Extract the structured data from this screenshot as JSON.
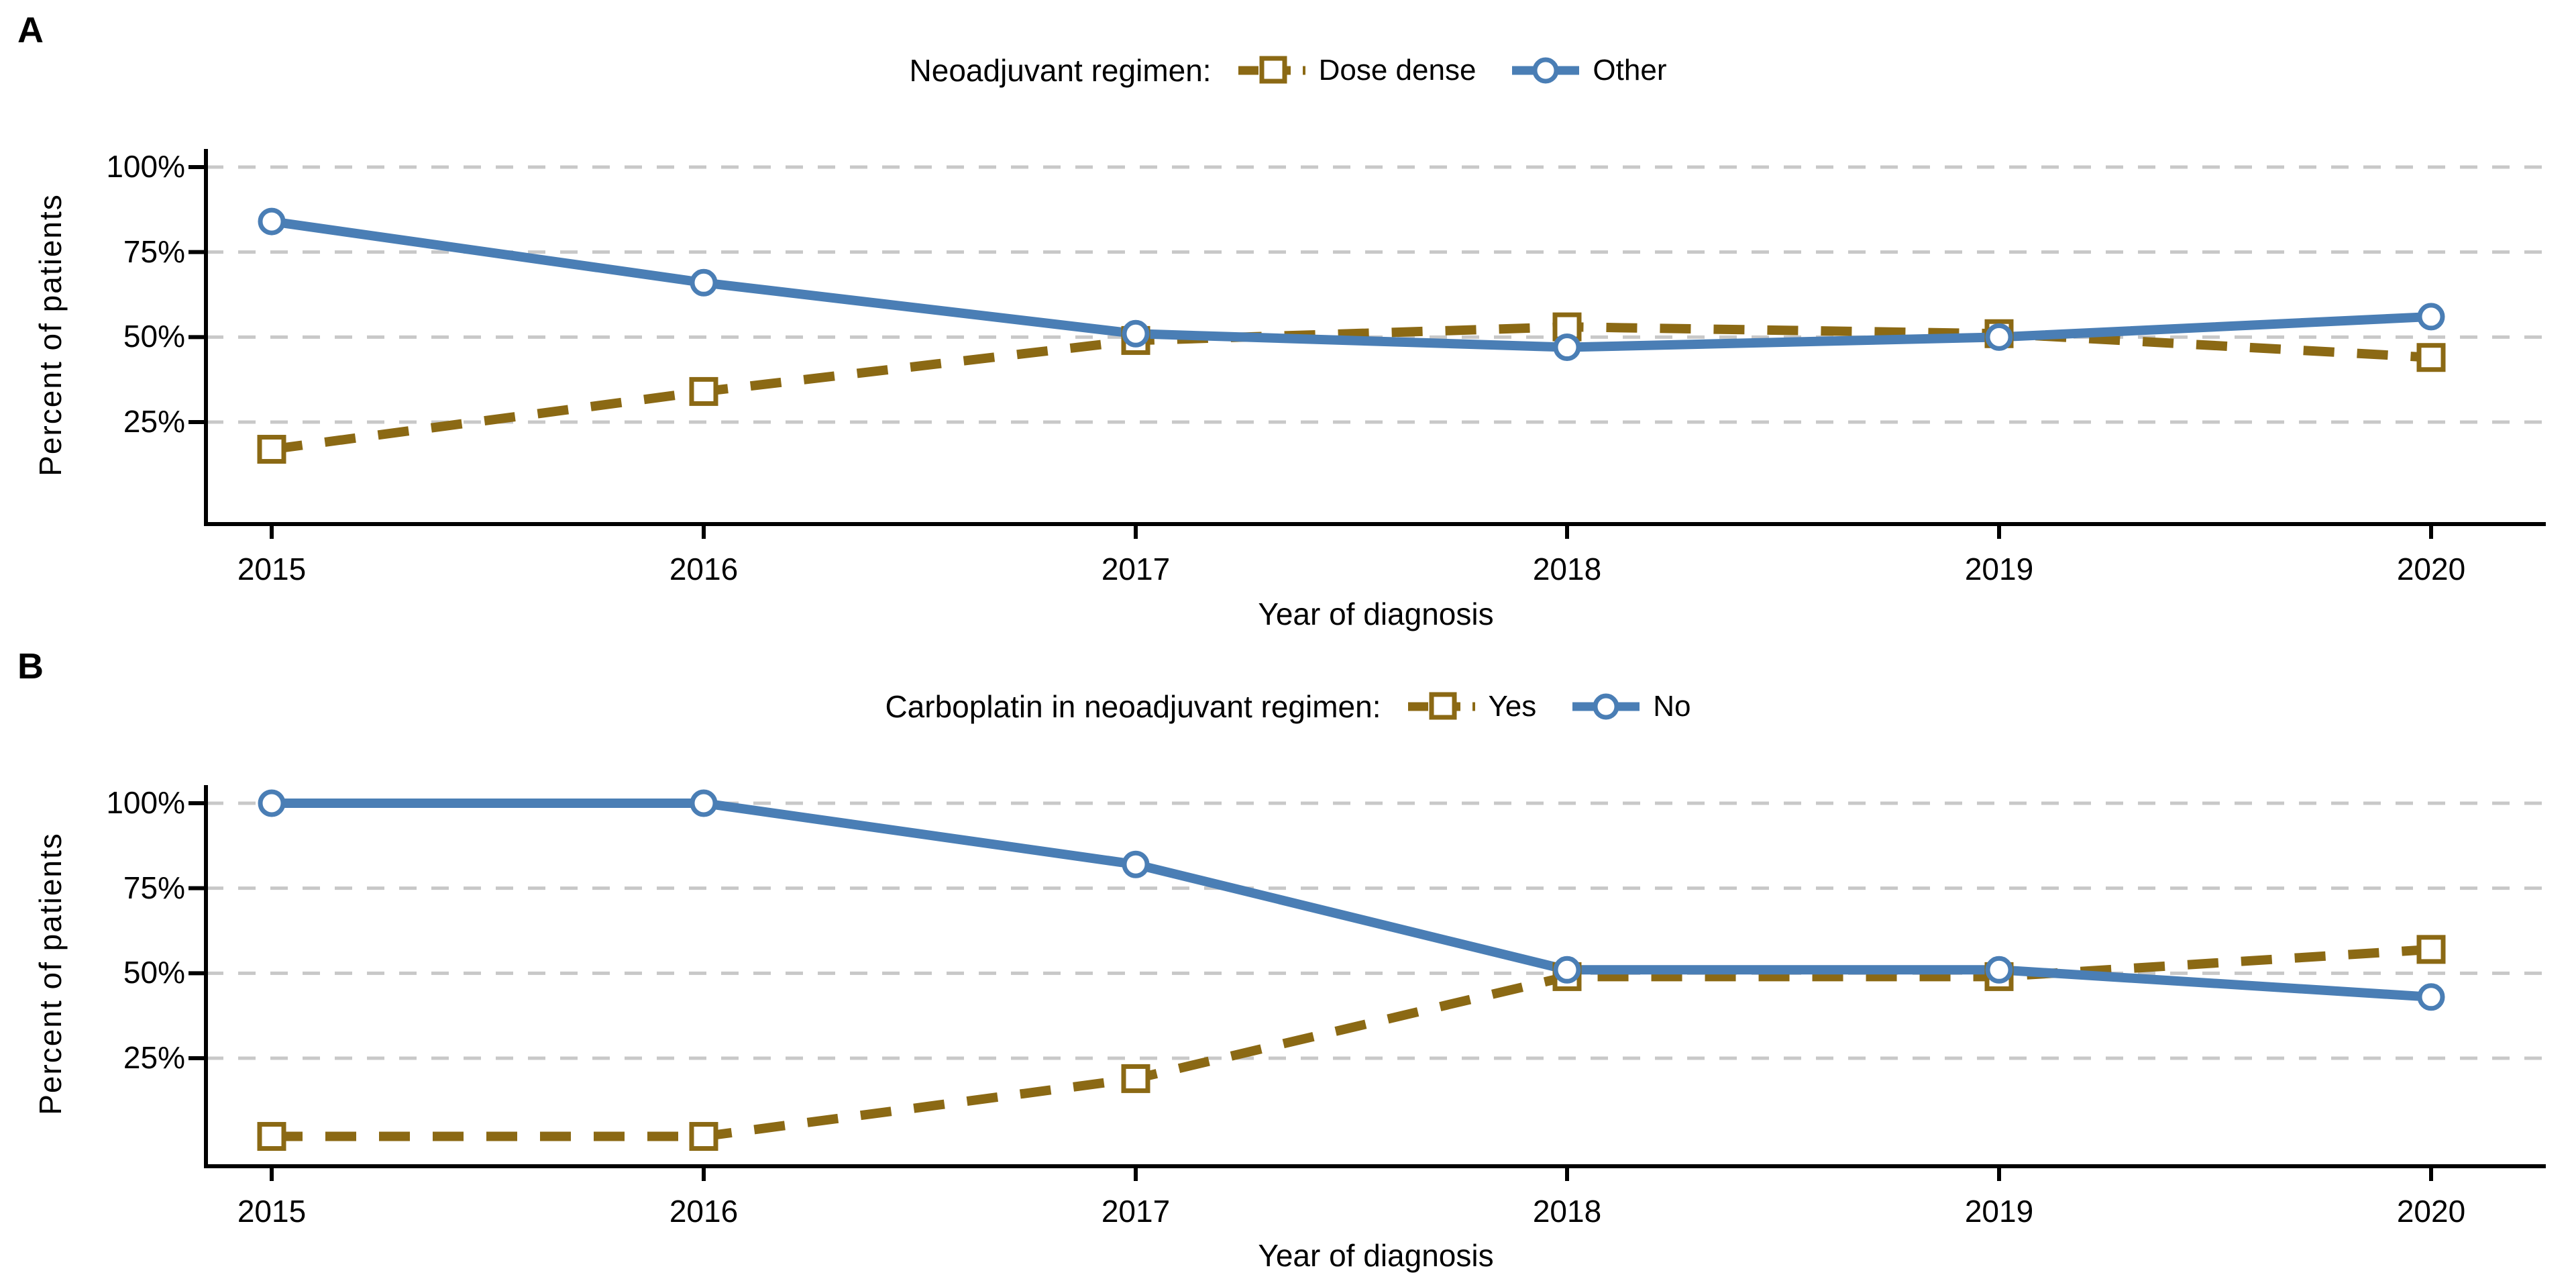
{
  "colors": {
    "gold": "#8B6914",
    "blue": "#4A7EB5",
    "gridline": "#C8C8C8",
    "axis": "#000000",
    "text": "#000000",
    "marker_fill": "#FFFFFF"
  },
  "chart_data": [
    {
      "type": "line",
      "panel_label": "A",
      "legend_title": "Neoadjuvant regimen:",
      "legend_position": "top",
      "grid": "horizontal-dashed",
      "xlabel": "Year of diagnosis",
      "ylabel": "Percent of patients",
      "ylim": [
        0,
        100
      ],
      "x": [
        2015,
        2016,
        2017,
        2018,
        2019,
        2020
      ],
      "x_tick_labels": [
        "2015",
        "2016",
        "2017",
        "2018",
        "2019",
        "2020"
      ],
      "y_tick_labels": [
        "100%",
        "75%",
        "50%",
        "25%"
      ],
      "y_tick_values": [
        100,
        75,
        50,
        25
      ],
      "series": [
        {
          "name": "Dose dense",
          "color_key": "gold",
          "line_style": "dashed",
          "marker": "square",
          "values": [
            17,
            34,
            49,
            53,
            51,
            44
          ]
        },
        {
          "name": "Other",
          "color_key": "blue",
          "line_style": "solid",
          "marker": "circle",
          "values": [
            84,
            66,
            51,
            47,
            50,
            56
          ]
        }
      ]
    },
    {
      "type": "line",
      "panel_label": "B",
      "legend_title": "Carboplatin in neoadjuvant regimen:",
      "legend_position": "top",
      "grid": "horizontal-dashed",
      "xlabel": "Year of diagnosis",
      "ylabel": "Percent of patients",
      "ylim": [
        0,
        100
      ],
      "x": [
        2015,
        2016,
        2017,
        2018,
        2019,
        2020
      ],
      "x_tick_labels": [
        "2015",
        "2016",
        "2017",
        "2018",
        "2019",
        "2020"
      ],
      "y_tick_labels": [
        "100%",
        "75%",
        "50%",
        "25%"
      ],
      "y_tick_values": [
        100,
        75,
        50,
        25
      ],
      "series": [
        {
          "name": "Yes",
          "color_key": "gold",
          "line_style": "dashed",
          "marker": "square",
          "values": [
            2,
            2,
            19,
            49,
            49,
            57
          ]
        },
        {
          "name": "No",
          "color_key": "blue",
          "line_style": "solid",
          "marker": "circle",
          "values": [
            100,
            100,
            82,
            51,
            51,
            43
          ]
        }
      ]
    }
  ]
}
